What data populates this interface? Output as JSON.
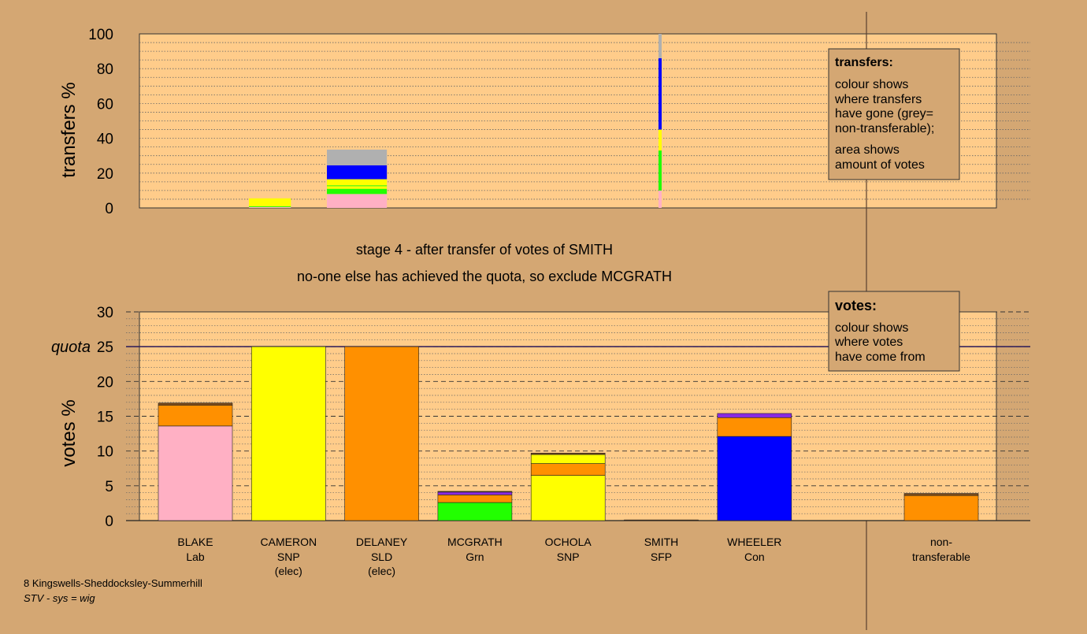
{
  "colors": {
    "background": "#d4a773",
    "plot_bg": "#ffcc8a",
    "Lab": "#ffb0c4",
    "SNP": "#ffff00",
    "SLD": "#ff9000",
    "Grn": "#22ff00",
    "Con": "#0000ff",
    "SFP": "#8a2be2",
    "grey": "#b0b0b0",
    "other": "#7a4a1a"
  },
  "stage_title": "stage 4 - after transfer of votes of SMITH",
  "stage_subtitle": "no-one else has achieved the quota, so exclude MCGRATH",
  "footer": {
    "line1": "8 Kingswells-Sheddocksley-Summerhill",
    "line2": "STV - sys = wig"
  },
  "legend_transfers": {
    "title": "transfers:",
    "lines": [
      "colour shows",
      "where transfers",
      "have gone (grey=",
      "non-transferable);",
      "area shows",
      "amount of votes"
    ]
  },
  "legend_votes": {
    "title": "votes:",
    "lines": [
      "colour shows",
      "where votes",
      "have come from"
    ]
  },
  "chart_data": [
    {
      "type": "bar",
      "name": "transfers",
      "ylabel": "transfers %",
      "ylim": [
        0,
        100
      ],
      "yticks": [
        0,
        20,
        40,
        60,
        80,
        100
      ],
      "grid": true,
      "transfer_blocks": [
        {
          "from": "CAMERON",
          "width_pct": 4.9,
          "segments": [
            {
              "color": "Lab",
              "value": 0.5
            },
            {
              "color": "Grn",
              "value": 0.5
            },
            {
              "color": "SNP",
              "value": 4.5
            }
          ]
        },
        {
          "from": "DELANEY",
          "width_pct": 7.0,
          "segments": [
            {
              "color": "Lab",
              "value": 8
            },
            {
              "color": "Grn",
              "value": 3
            },
            {
              "color": "SNP",
              "value": 1.5
            },
            {
              "color": "Grn",
              "value": 0.5
            },
            {
              "color": "SNP",
              "value": 3.5
            },
            {
              "color": "Con",
              "value": 8
            },
            {
              "color": "grey",
              "value": 9
            }
          ]
        },
        {
          "from": "SMITH",
          "width_pct": 0.3,
          "segments": [
            {
              "color": "Lab",
              "value": 10
            },
            {
              "color": "Grn",
              "value": 23
            },
            {
              "color": "SNP",
              "value": 12
            },
            {
              "color": "Con",
              "value": 41
            },
            {
              "color": "grey",
              "value": 14
            }
          ]
        }
      ]
    },
    {
      "type": "bar",
      "name": "votes",
      "ylabel": "votes %",
      "ylim": [
        0,
        30
      ],
      "yticks": [
        0,
        5,
        10,
        15,
        20,
        25,
        30
      ],
      "quota": 25,
      "quota_label": "quota",
      "grid": true,
      "candidates": [
        {
          "name": "BLAKE",
          "party": "Lab",
          "note": "",
          "segments": [
            {
              "color": "Lab",
              "value": 13.6
            },
            {
              "color": "SLD",
              "value": 3.0
            },
            {
              "color": "other",
              "value": 0.3
            }
          ]
        },
        {
          "name": "CAMERON",
          "party": "SNP",
          "note": "(elec)",
          "segments": [
            {
              "color": "SNP",
              "value": 25.0
            }
          ]
        },
        {
          "name": "DELANEY",
          "party": "SLD",
          "note": "(elec)",
          "segments": [
            {
              "color": "SLD",
              "value": 25.0
            }
          ]
        },
        {
          "name": "MCGRATH",
          "party": "Grn",
          "note": "",
          "segments": [
            {
              "color": "Grn",
              "value": 2.6
            },
            {
              "color": "SLD",
              "value": 1.1
            },
            {
              "color": "SFP",
              "value": 0.4
            },
            {
              "color": "other",
              "value": 0.1
            }
          ]
        },
        {
          "name": "OCHOLA",
          "party": "SNP",
          "note": "",
          "segments": [
            {
              "color": "SNP",
              "value": 6.5
            },
            {
              "color": "SLD",
              "value": 1.7
            },
            {
              "color": "SNP",
              "value": 1.3
            },
            {
              "color": "other",
              "value": 0.2
            }
          ]
        },
        {
          "name": "SMITH",
          "party": "SFP",
          "note": "",
          "segments": [
            {
              "color": "other",
              "value": 0.1
            }
          ]
        },
        {
          "name": "WHEELER",
          "party": "Con",
          "note": "",
          "segments": [
            {
              "color": "Con",
              "value": 12.1
            },
            {
              "color": "SLD",
              "value": 2.7
            },
            {
              "color": "SFP",
              "value": 0.6
            }
          ]
        },
        {
          "name": "non-",
          "party": "transferable",
          "note": "",
          "segments": [
            {
              "color": "SLD",
              "value": 3.6
            },
            {
              "color": "other",
              "value": 0.3
            }
          ]
        }
      ]
    }
  ]
}
